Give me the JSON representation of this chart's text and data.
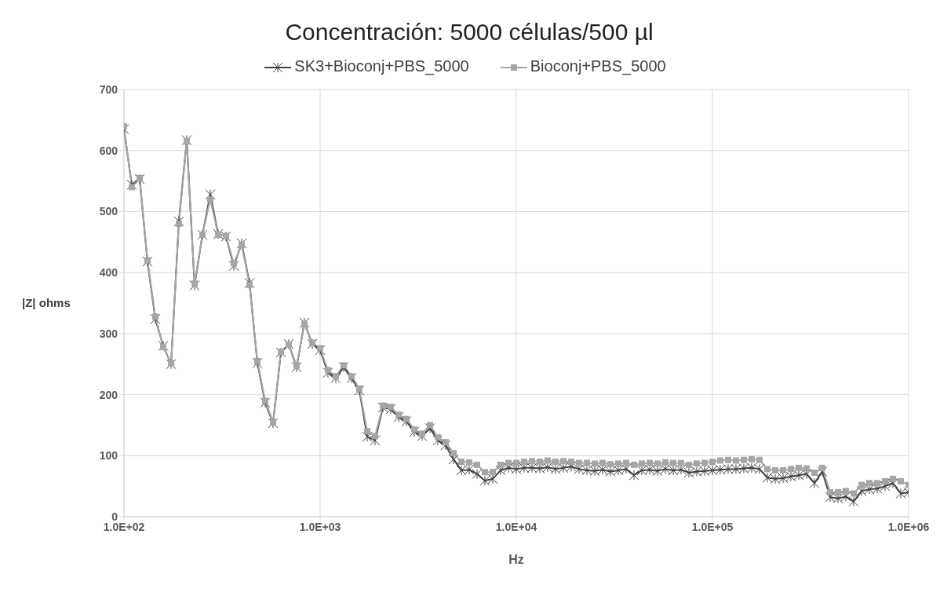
{
  "chart_data": {
    "type": "line",
    "title": "Concentración: 5000 células/500 µl",
    "xlabel": "Hz",
    "ylabel": "|Z| ohms",
    "x": [
      100,
      109.6,
      120.2,
      131.8,
      144.5,
      158.5,
      173.8,
      190.5,
      208.9,
      229.1,
      251.2,
      275.4,
      302,
      331.1,
      363.1,
      398.1,
      436.5,
      478.6,
      524.8,
      575.4,
      631,
      691.8,
      758.6,
      831.8,
      912,
      1000,
      1096,
      1202,
      1318,
      1445,
      1585,
      1738,
      1905,
      2089,
      2291,
      2512,
      2754,
      3020,
      3311,
      3631,
      3981,
      4365,
      4786,
      5248,
      5754,
      6310,
      6918,
      7586,
      8318,
      9120,
      10000,
      10960,
      12020,
      13180,
      14450,
      15850,
      17380,
      19050,
      20890,
      22910,
      25120,
      27540,
      30200,
      33110,
      36310,
      39810,
      43650,
      47860,
      52480,
      57540,
      63100,
      69180,
      75860,
      83180,
      91200,
      100000,
      109600,
      120200,
      131800,
      144500,
      158500,
      173800,
      190500,
      208900,
      229100,
      251200,
      275400,
      302000,
      331100,
      363100,
      398100,
      436500,
      478600,
      524800,
      575400,
      631000,
      691800,
      758600,
      831800,
      912000,
      1000000
    ],
    "series": [
      {
        "name": "SK3+Bioconj+PBS_5000",
        "color": "#404040",
        "marker": "cross",
        "values": [
          635,
          544,
          553,
          418,
          324,
          280,
          250,
          484,
          617,
          379,
          462,
          528,
          463,
          459,
          411,
          448,
          383,
          252,
          187,
          153,
          269,
          283,
          245,
          318,
          283,
          273,
          236,
          227,
          245,
          227,
          207,
          131,
          125,
          179,
          176,
          163,
          156,
          139,
          132,
          145,
          125,
          117,
          94,
          76,
          77,
          70,
          59,
          62,
          76,
          80,
          78,
          80,
          80,
          79,
          81,
          78,
          80,
          82,
          78,
          76,
          75,
          77,
          74,
          76,
          78,
          68,
          76,
          77,
          75,
          78,
          76,
          77,
          72,
          74,
          75,
          76,
          77,
          78,
          78,
          79,
          80,
          78,
          64,
          62,
          63,
          66,
          68,
          70,
          55,
          74,
          32,
          30,
          33,
          25,
          42,
          45,
          46,
          50,
          55,
          38,
          40
        ]
      },
      {
        "name": "Bioconj+PBS_5000",
        "color": "#a6a6a6",
        "marker": "square",
        "values": [
          640,
          540,
          555,
          420,
          328,
          278,
          252,
          480,
          615,
          382,
          462,
          520,
          462,
          460,
          415,
          445,
          380,
          255,
          190,
          155,
          270,
          282,
          248,
          315,
          285,
          276,
          240,
          230,
          248,
          230,
          210,
          140,
          132,
          182,
          180,
          167,
          160,
          143,
          136,
          150,
          130,
          122,
          104,
          90,
          89,
          85,
          73,
          73,
          85,
          88,
          88,
          90,
          91,
          90,
          92,
          90,
          91,
          90,
          88,
          88,
          87,
          88,
          86,
          87,
          88,
          85,
          87,
          88,
          87,
          89,
          88,
          88,
          85,
          87,
          88,
          90,
          92,
          93,
          92,
          93,
          94,
          93,
          78,
          76,
          76,
          78,
          80,
          79,
          72,
          80,
          40,
          40,
          42,
          38,
          52,
          55,
          55,
          58,
          62,
          58,
          52
        ]
      }
    ],
    "xlim": [
      100,
      1000000
    ],
    "xticks": [
      {
        "value": 100,
        "label": "1.0E+02"
      },
      {
        "value": 1000,
        "label": "1.0E+03"
      },
      {
        "value": 10000,
        "label": "1.0E+04"
      },
      {
        "value": 100000,
        "label": "1.0E+05"
      },
      {
        "value": 1000000,
        "label": "1.0E+06"
      }
    ],
    "ylim": [
      0,
      700
    ],
    "yticks": [
      0,
      100,
      200,
      300,
      400,
      500,
      600,
      700
    ],
    "log": "x",
    "grid": true,
    "legend": "top"
  }
}
